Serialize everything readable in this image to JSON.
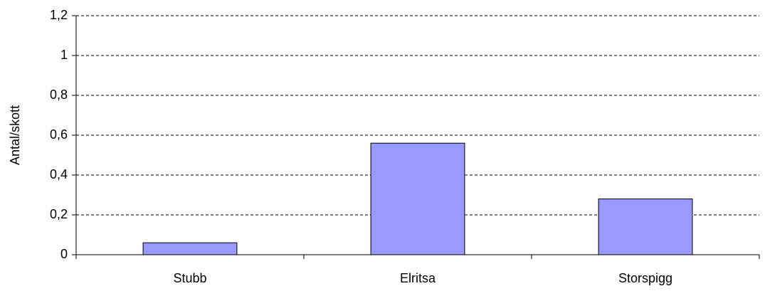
{
  "chart_data": {
    "type": "bar",
    "y_label": "Antal/skott",
    "categories": [
      "Stubb",
      "Elritsa",
      "Storspigg"
    ],
    "values": [
      0.06,
      0.56,
      0.28
    ],
    "color": "#9999ff",
    "ylim": [
      0,
      1.2
    ],
    "yticks": [
      0,
      {
        "value": 0.2,
        "label": "0,2"
      },
      {
        "value": 0.4,
        "label": "0,4"
      },
      {
        "value": 0.6,
        "label": "0,6"
      },
      {
        "value": 0.8,
        "label": "0,8"
      },
      1,
      {
        "value": 1.2,
        "label": "1,2"
      }
    ],
    "grid": true
  }
}
